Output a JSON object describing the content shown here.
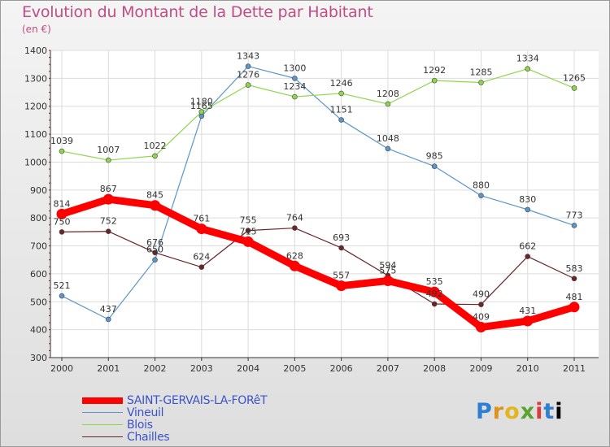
{
  "title": "Evolution du Montant de la Dette par Habitant",
  "subtitle": "(en €)",
  "logo_text": "Proxiti",
  "chart_data": {
    "type": "line",
    "title": "Evolution du Montant de la Dette par Habitant",
    "subtitle": "(en €)",
    "xlabel": "",
    "ylabel": "",
    "x": [
      "2000",
      "2001",
      "2002",
      "2003",
      "2004",
      "2005",
      "2006",
      "2007",
      "2008",
      "2009",
      "2010",
      "2011"
    ],
    "ylim": [
      300,
      1400
    ],
    "yticks": [
      300,
      400,
      500,
      600,
      700,
      800,
      900,
      1000,
      1100,
      1200,
      1300,
      1400
    ],
    "grid": true,
    "legend_position": "bottom-left",
    "series": [
      {
        "name": "Vineuil",
        "color": "#5c96c8",
        "values": [
          521,
          437,
          650,
          1165,
          1343,
          1300,
          1151,
          1048,
          985,
          880,
          830,
          773
        ]
      },
      {
        "name": "Blois",
        "color": "#8fd64a",
        "values": [
          1039,
          1007,
          1022,
          1180,
          1276,
          1234,
          1246,
          1208,
          1292,
          1285,
          1334,
          1265
        ]
      },
      {
        "name": "Chailles",
        "color": "#6b2428",
        "values": [
          750,
          752,
          676,
          624,
          755,
          764,
          693,
          594,
          492,
          490,
          662,
          583
        ]
      },
      {
        "name": "SAINT-GERVAIS-LA-FORêT",
        "color": "#ff0000",
        "values": [
          814,
          867,
          845,
          761,
          715,
          628,
          557,
          575,
          535,
          409,
          431,
          481
        ]
      }
    ]
  }
}
